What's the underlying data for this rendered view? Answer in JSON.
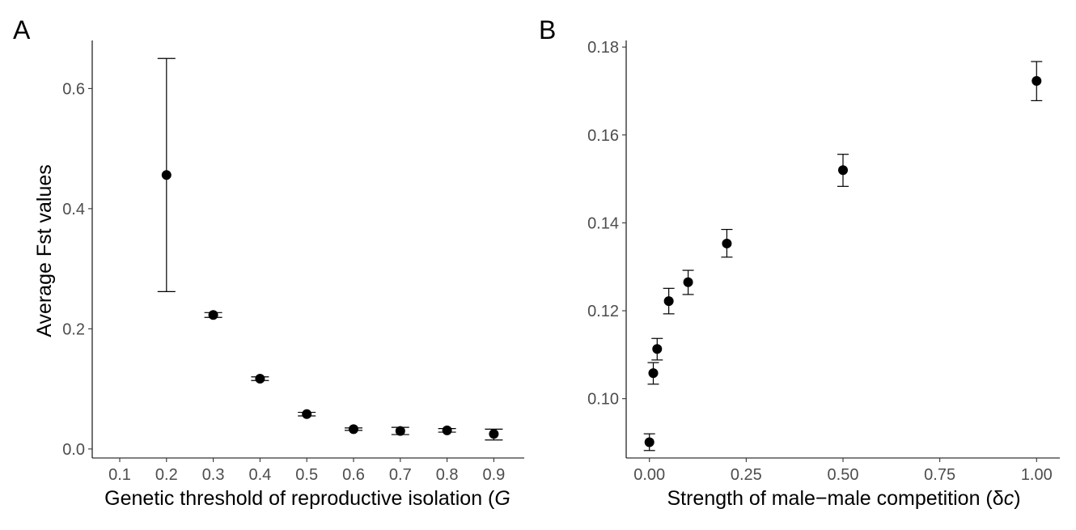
{
  "chart_data": [
    {
      "panel_label": "A",
      "type": "scatter",
      "xlabel": "Genetic threshold of reproductive isolation (",
      "xlabel_italic": "G",
      "ylabel": "Average Fst values",
      "categories": [
        "0.1",
        "0.2",
        "0.3",
        "0.4",
        "0.5",
        "0.6",
        "0.7",
        "0.8",
        "0.9"
      ],
      "yticks": [
        0.0,
        0.2,
        0.4,
        0.6
      ],
      "ytick_labels": [
        "0.0",
        "0.2",
        "0.4",
        "0.6"
      ],
      "ylim": [
        -0.015,
        0.68
      ],
      "grid": false,
      "points": [
        {
          "x": "0.2",
          "y": 0.456,
          "ymin": 0.262,
          "ymax": 0.65
        },
        {
          "x": "0.3",
          "y": 0.223,
          "ymin": 0.219,
          "ymax": 0.227
        },
        {
          "x": "0.4",
          "y": 0.117,
          "ymin": 0.114,
          "ymax": 0.12
        },
        {
          "x": "0.5",
          "y": 0.058,
          "ymin": 0.055,
          "ymax": 0.061
        },
        {
          "x": "0.6",
          "y": 0.033,
          "ymin": 0.031,
          "ymax": 0.035
        },
        {
          "x": "0.7",
          "y": 0.03,
          "ymin": 0.024,
          "ymax": 0.036
        },
        {
          "x": "0.8",
          "y": 0.031,
          "ymin": 0.028,
          "ymax": 0.034
        },
        {
          "x": "0.9",
          "y": 0.025,
          "ymin": 0.015,
          "ymax": 0.033
        }
      ]
    },
    {
      "panel_label": "B",
      "type": "scatter",
      "xlabel": "Strength of male−male competition (",
      "xlabel_symbol": "δ",
      "xlabel_italic": "c",
      "xlabel_end": ")",
      "ylabel": "",
      "xticks": [
        0.0,
        0.25,
        0.5,
        0.75,
        1.0
      ],
      "xtick_labels": [
        "0.00",
        "0.25",
        "0.50",
        "0.75",
        "1.00"
      ],
      "yticks": [
        0.1,
        0.12,
        0.14,
        0.16,
        0.18
      ],
      "ytick_labels": [
        "0.10",
        "0.12",
        "0.14",
        "0.16",
        "0.18"
      ],
      "xlim": [
        -0.06,
        1.06
      ],
      "ylim": [
        0.0865,
        0.1815
      ],
      "grid": false,
      "points": [
        {
          "x": 0.0,
          "y": 0.0901,
          "ymin": 0.0882,
          "ymax": 0.092
        },
        {
          "x": 0.01,
          "y": 0.1058,
          "ymin": 0.1033,
          "ymax": 0.1082
        },
        {
          "x": 0.02,
          "y": 0.1113,
          "ymin": 0.1088,
          "ymax": 0.1137
        },
        {
          "x": 0.05,
          "y": 0.1222,
          "ymin": 0.1193,
          "ymax": 0.1251
        },
        {
          "x": 0.1,
          "y": 0.1265,
          "ymin": 0.1237,
          "ymax": 0.1292
        },
        {
          "x": 0.2,
          "y": 0.1353,
          "ymin": 0.1322,
          "ymax": 0.1385
        },
        {
          "x": 0.5,
          "y": 0.152,
          "ymin": 0.1483,
          "ymax": 0.1556
        },
        {
          "x": 1.0,
          "y": 0.1723,
          "ymin": 0.1678,
          "ymax": 0.1767
        }
      ]
    }
  ]
}
